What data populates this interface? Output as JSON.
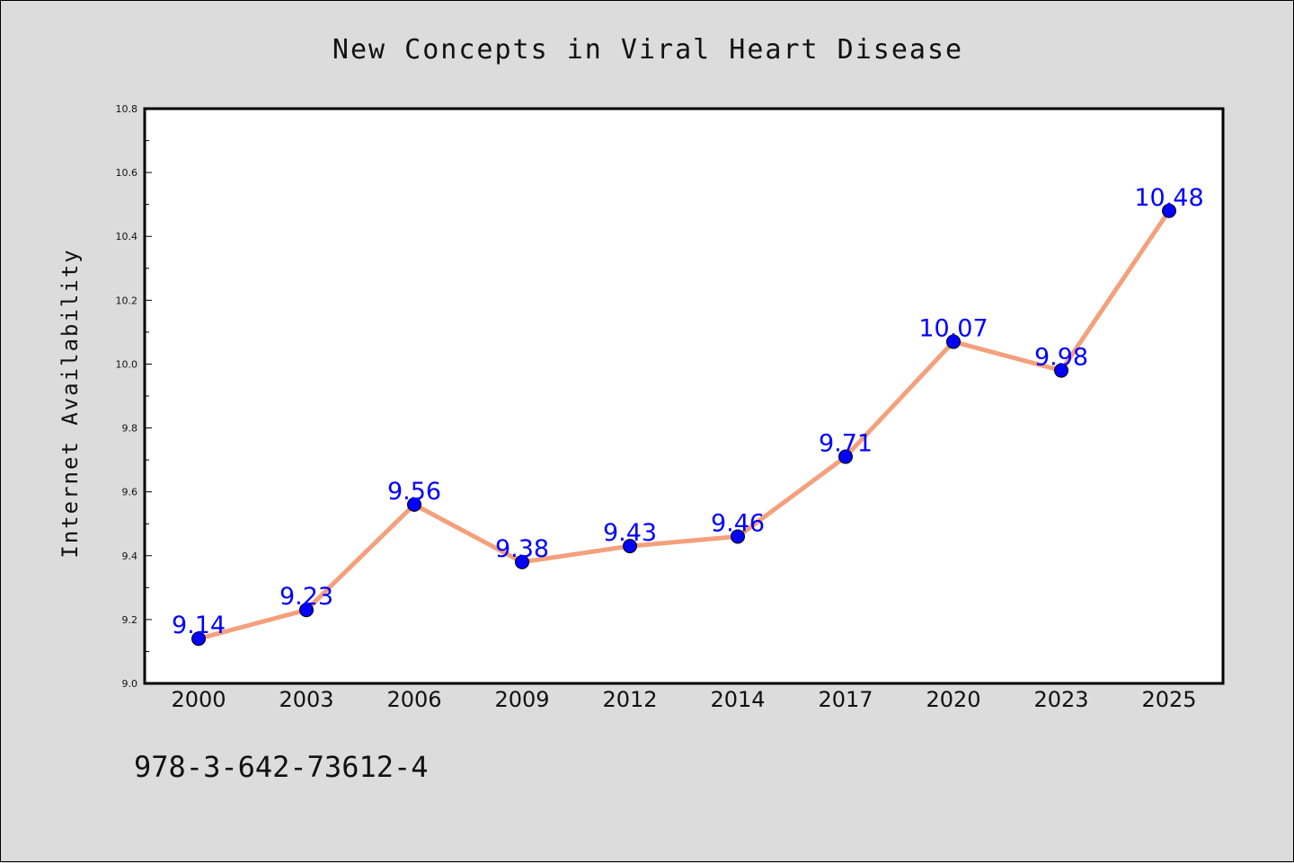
{
  "chart_data": {
    "type": "line",
    "title": "New Concepts in Viral Heart Disease",
    "xlabel": "",
    "ylabel": "Internet Availability",
    "categories": [
      "2000",
      "2003",
      "2006",
      "2009",
      "2012",
      "2014",
      "2017",
      "2020",
      "2023",
      "2025"
    ],
    "series": [
      {
        "values": [
          9.14,
          9.23,
          9.56,
          9.38,
          9.43,
          9.46,
          9.71,
          10.07,
          9.98,
          10.48
        ],
        "labels": [
          "9.14",
          "9.23",
          "9.56",
          "9.38",
          "9.43",
          "9.46",
          "9.71",
          "10.07",
          "9.98",
          "10.48"
        ]
      }
    ],
    "ylim": [
      9.0,
      10.8
    ],
    "yticks": [
      "9.0",
      "9.2",
      "9.4",
      "9.6",
      "9.8",
      "10.0",
      "10.2",
      "10.4",
      "10.6",
      "10.8"
    ],
    "grid": false,
    "colors": {
      "line": "#f4a07c",
      "marker": "#0000ff",
      "data_label": "#0000ff",
      "background": "#dcdcdc",
      "plot_area": "#ffffff"
    }
  },
  "footnote": "978-3-642-73612-4"
}
